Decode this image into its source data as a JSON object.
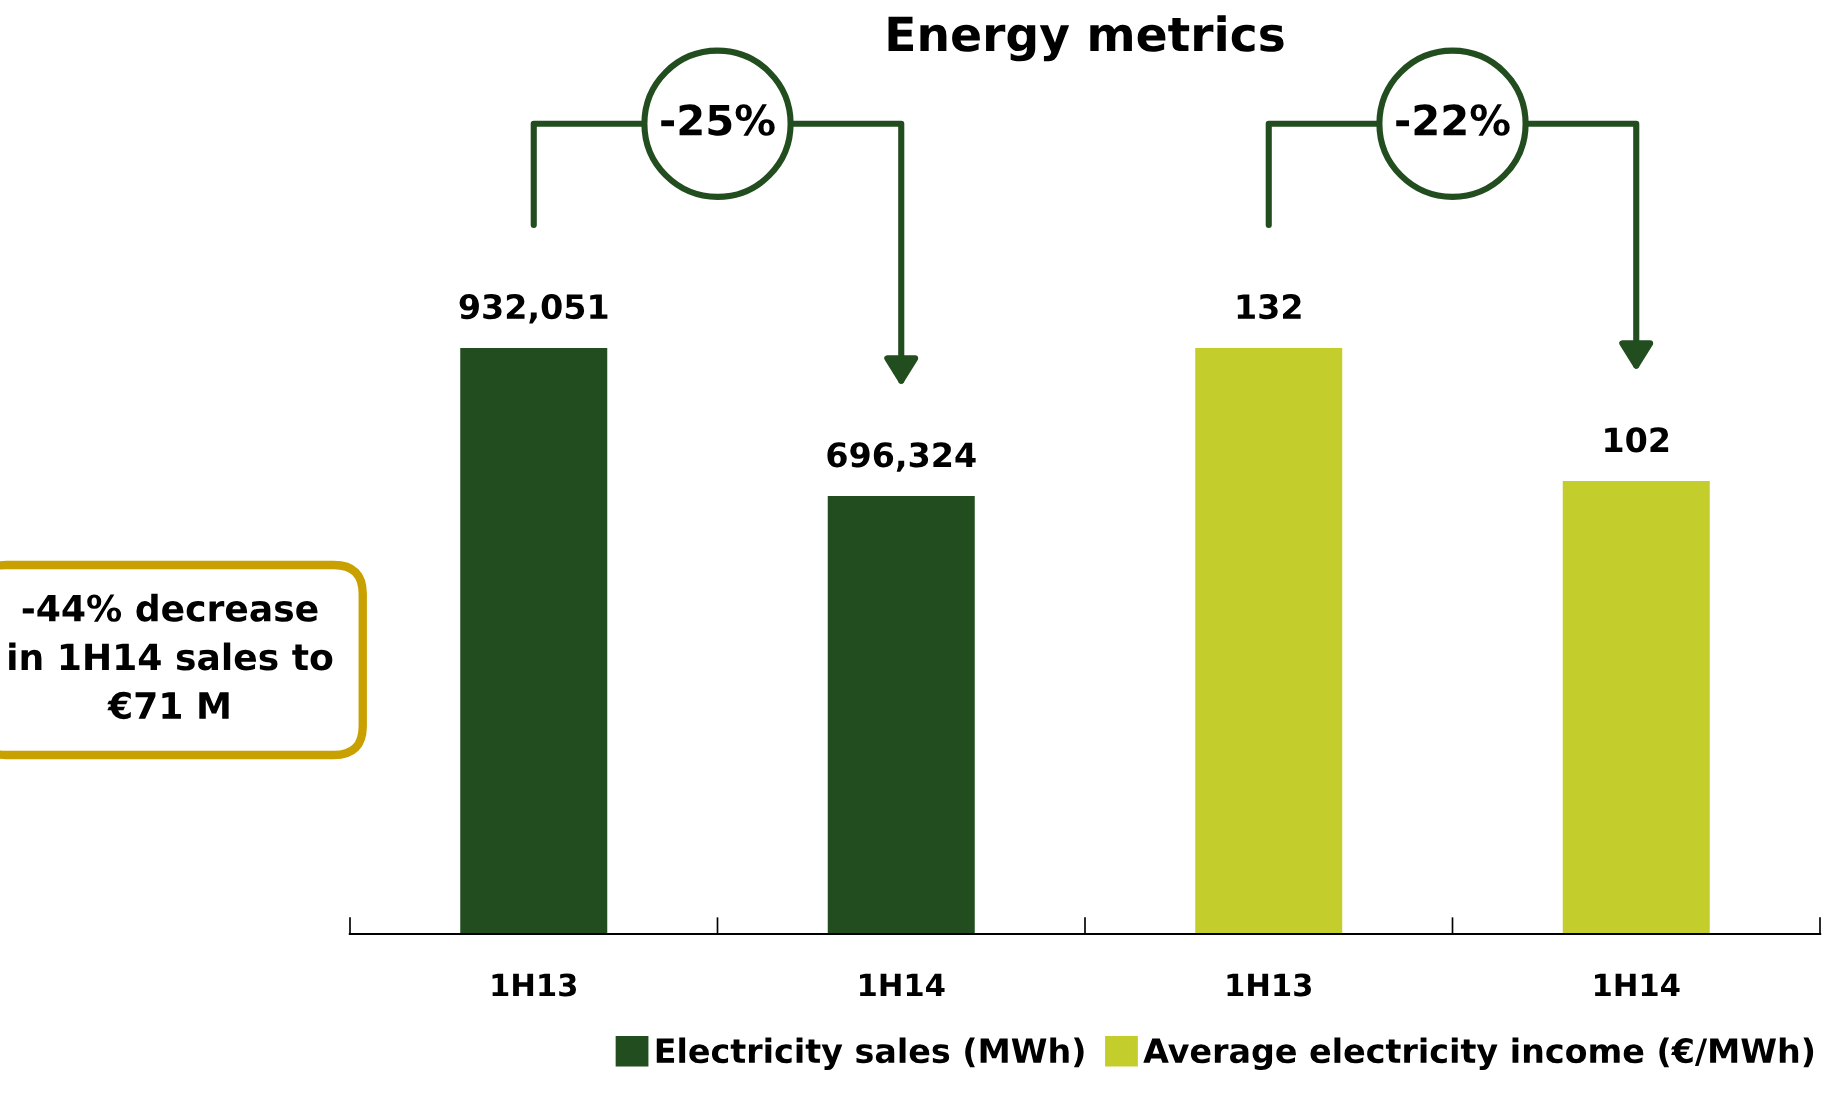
{
  "chart_data": {
    "type": "bar",
    "title": "Energy metrics",
    "categories": [
      "1H13",
      "1H14",
      "1H13",
      "1H14"
    ],
    "series": [
      {
        "name": "Electricity sales (MWh)",
        "color": "#214d1f",
        "values": [
          932051,
          696324,
          null,
          null
        ],
        "value_labels": [
          "932,051",
          "696,324",
          null,
          null
        ]
      },
      {
        "name": "Average electricity income (€/MWh)",
        "color": "#c3cd2c",
        "values": [
          null,
          null,
          132,
          102
        ],
        "axis": "y2"
      }
    ],
    "data_labels": true,
    "tick_labels": "x",
    "grid": false,
    "legend": "bottom",
    "annotations": [
      "-25%",
      "-22%",
      "-44% decrease in 1H14 sales to €71 M"
    ]
  }
}
